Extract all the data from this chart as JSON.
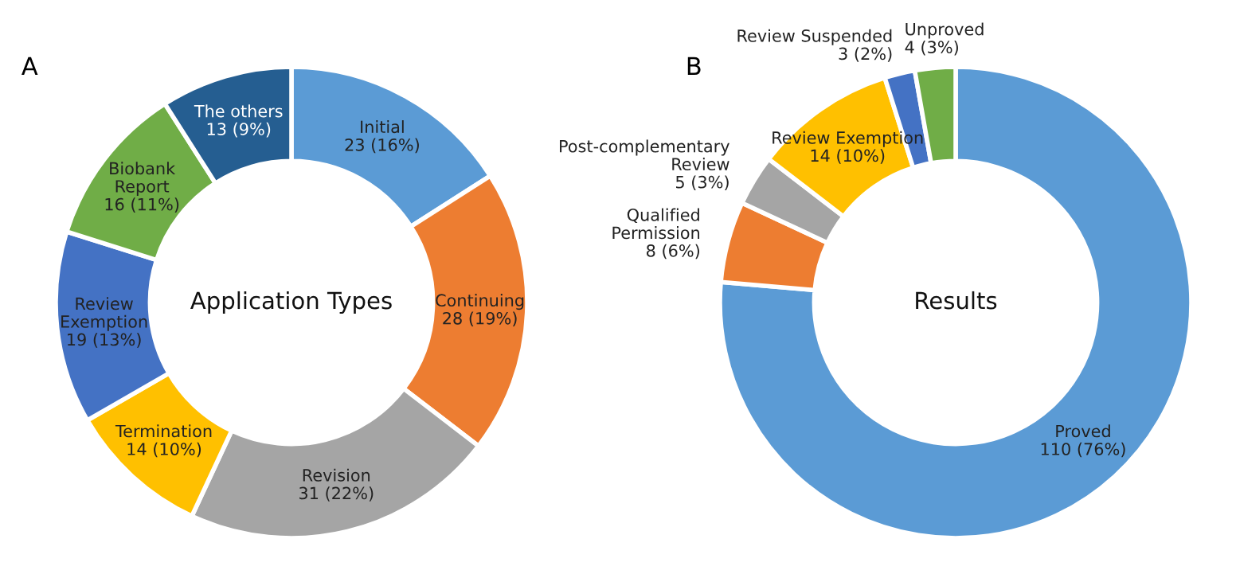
{
  "chart_data": [
    {
      "type": "donut",
      "title": "Application Types",
      "annotations": [
        "A"
      ],
      "categories": [
        "Initial",
        "Continuing",
        "Revision",
        "Termination",
        "Review\nExemption",
        "Biobank\nReport",
        "The others"
      ],
      "values": [
        23,
        28,
        31,
        14,
        19,
        16,
        13
      ],
      "value_labels": [
        "23 (16%)",
        "28 (19%)",
        "31 (22%)",
        "14 (10%)",
        "19 (13%)",
        "16 (11%)",
        "13 (9%)"
      ],
      "colors": [
        "#5b9bd5",
        "#ed7d31",
        "#a5a5a5",
        "#ffc000",
        "#4472c4",
        "#70ad47",
        "#255e91"
      ]
    },
    {
      "type": "donut",
      "title": "Results",
      "annotations": [
        "B"
      ],
      "categories": [
        "Proved",
        "Qualified\nPermission",
        "Post-complementary\nReview",
        "Review Exemption",
        "Review Suspended",
        "Unproved"
      ],
      "values": [
        110,
        8,
        5,
        14,
        3,
        4
      ],
      "value_labels": [
        "110 (76%)",
        "8 (6%)",
        "5 (3%)",
        "14 (10%)",
        "3 (2%)",
        "4 (3%)"
      ],
      "colors": [
        "#5b9bd5",
        "#ed7d31",
        "#a5a5a5",
        "#ffc000",
        "#4472c4",
        "#70ad47"
      ]
    }
  ]
}
